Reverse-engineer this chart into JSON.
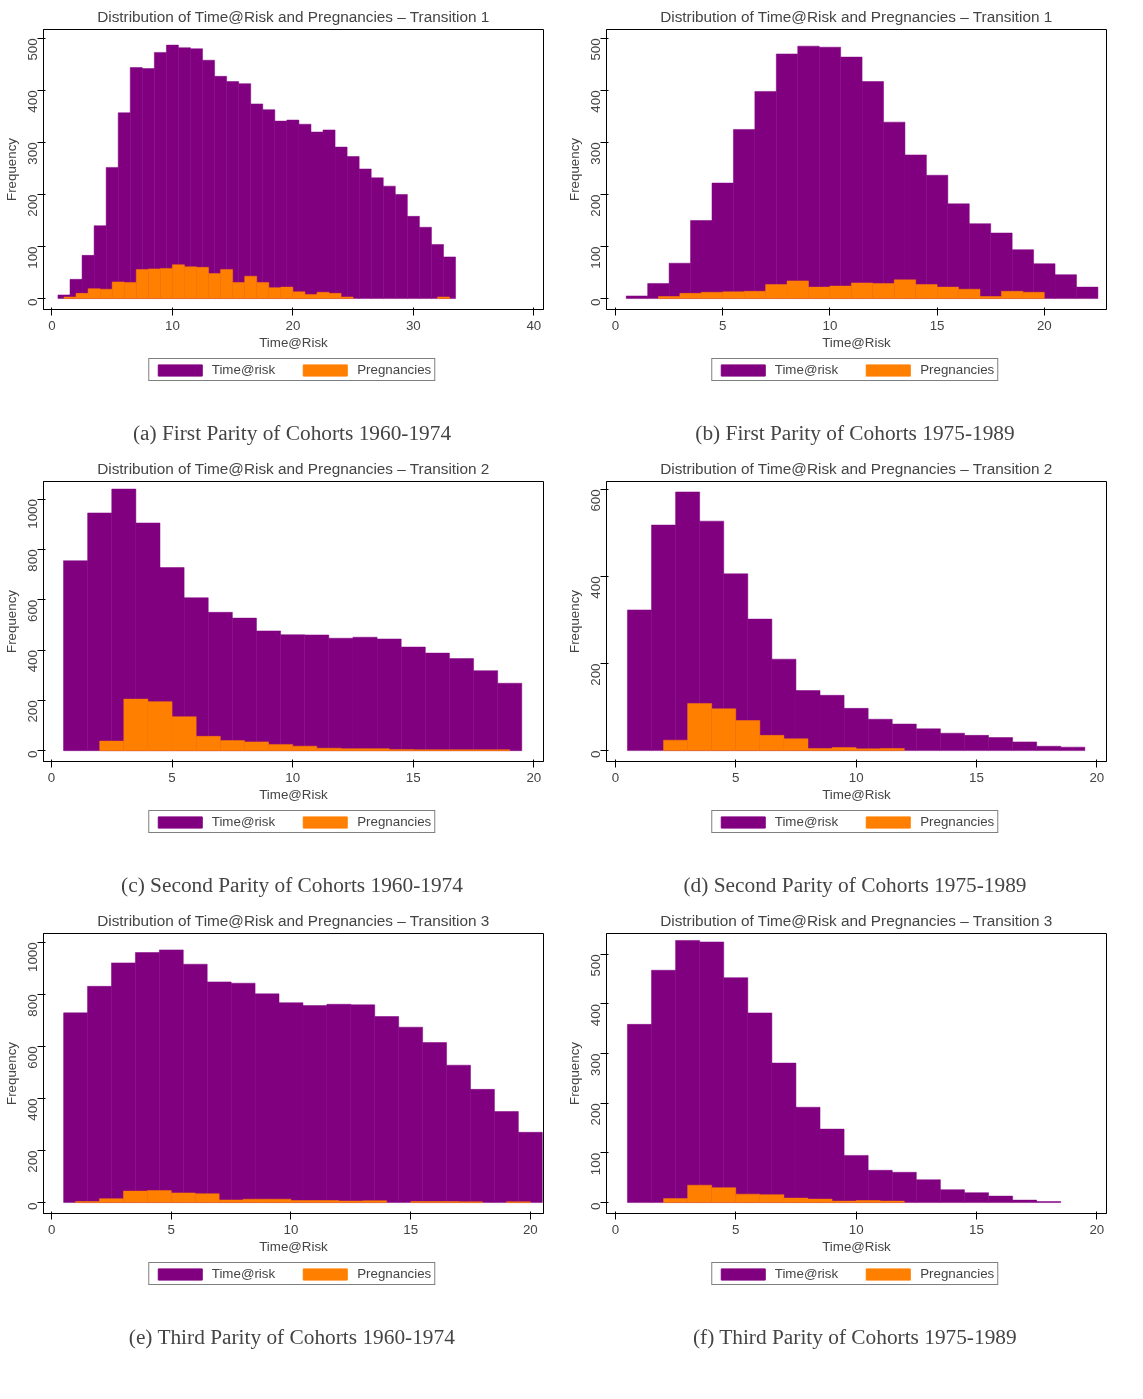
{
  "chart_data": [
    {
      "type": "bar",
      "title": "Distribution of Time@Risk and Pregnancies – Transition 1",
      "xlabel": "Time@Risk",
      "ylabel": "Frequency",
      "xlim": [
        -0.7,
        40.8
      ],
      "ylim": [
        -21,
        517
      ],
      "xticks": [
        0,
        10,
        20,
        30,
        40
      ],
      "yticks": [
        0,
        100,
        200,
        300,
        400,
        500
      ],
      "grid": false,
      "legend": "bottom",
      "annotations": [
        "(a) First Parity of Cohorts 1960-1974"
      ],
      "series": [
        {
          "name": "Time@risk",
          "color": "#800080",
          "x": [
            1,
            2,
            3,
            4,
            5,
            6,
            7,
            8,
            9,
            10,
            11,
            12,
            13,
            14,
            15,
            16,
            17,
            18,
            19,
            20,
            21,
            22,
            23,
            24,
            25,
            26,
            27,
            28,
            29,
            30,
            31,
            32,
            33
          ],
          "values": [
            7,
            37,
            83,
            140,
            252,
            357,
            444,
            442,
            473,
            487,
            482,
            480,
            458,
            427,
            417,
            413,
            374,
            363,
            341,
            343,
            335,
            320,
            324,
            291,
            273,
            249,
            232,
            216,
            200,
            158,
            137,
            104,
            80
          ]
        },
        {
          "name": "Pregnancies",
          "color": "#ff7f00",
          "x": [
            1.5,
            2.5,
            3.5,
            4.5,
            5.5,
            6.5,
            7.5,
            8.5,
            9.5,
            10.5,
            11.5,
            12.5,
            13.5,
            14.5,
            15.5,
            16.5,
            17.5,
            18.5,
            19.5,
            20.5,
            21.5,
            22.5,
            23.5,
            24.5,
            32.5
          ],
          "values": [
            3,
            10,
            19,
            18,
            32,
            31,
            56,
            57,
            58,
            65,
            61,
            60,
            48,
            56,
            31,
            43,
            31,
            21,
            22,
            13,
            8,
            12,
            10,
            3,
            3
          ]
        }
      ]
    },
    {
      "type": "bar",
      "title": "Distribution of Time@Risk and Pregnancies – Transition 1",
      "xlabel": "Time@Risk",
      "ylabel": "Frequency",
      "xlim": [
        -0.42,
        22.9
      ],
      "ylim": [
        -21,
        517
      ],
      "xticks": [
        0,
        5,
        10,
        15,
        20
      ],
      "yticks": [
        0,
        100,
        200,
        300,
        400,
        500
      ],
      "grid": false,
      "legend": "bottom",
      "annotations": [
        "(b) First Parity of Cohorts 1975-1989"
      ],
      "series": [
        {
          "name": "Time@risk",
          "color": "#800080",
          "x": [
            1,
            2,
            3,
            4,
            5,
            6,
            7,
            8,
            9,
            10,
            11,
            12,
            13,
            14,
            15,
            16,
            17,
            18,
            19,
            20,
            21,
            22
          ],
          "values": [
            5,
            29,
            68,
            150,
            222,
            325,
            398,
            470,
            485,
            483,
            464,
            417,
            339,
            276,
            237,
            182,
            144,
            126,
            94,
            67,
            46,
            22
          ]
        },
        {
          "name": "Pregnancies",
          "color": "#ff7f00",
          "x": [
            2.5,
            3.5,
            4.5,
            5.5,
            6.5,
            7.5,
            8.5,
            9.5,
            10.5,
            11.5,
            12.5,
            13.5,
            14.5,
            15.5,
            16.5,
            17.5,
            18.5,
            19.5
          ],
          "values": [
            4,
            10,
            12,
            13,
            14,
            27,
            34,
            22,
            24,
            30,
            29,
            36,
            27,
            22,
            18,
            4,
            14,
            12
          ]
        }
      ]
    },
    {
      "type": "bar",
      "title": "Distribution of Time@Risk and Pregnancies – Transition 2",
      "xlabel": "Time@Risk",
      "ylabel": "Frequency",
      "xlim": [
        -0.33,
        20.4
      ],
      "ylim": [
        -43,
        1070
      ],
      "xticks": [
        0,
        5,
        10,
        15,
        20
      ],
      "yticks": [
        0,
        200,
        400,
        600,
        800,
        1000
      ],
      "grid": false,
      "legend": "bottom",
      "annotations": [
        "(c) Second Parity of Cohorts 1960-1974"
      ],
      "series": [
        {
          "name": "Time@risk",
          "color": "#800080",
          "x": [
            1,
            2,
            3,
            4,
            5,
            6,
            7,
            8,
            9,
            10,
            11,
            12,
            13,
            14,
            15,
            16,
            17,
            18,
            19
          ],
          "values": [
            755,
            945,
            1040,
            905,
            728,
            608,
            550,
            527,
            476,
            461,
            460,
            447,
            451,
            444,
            412,
            388,
            366,
            318,
            268
          ]
        },
        {
          "name": "Pregnancies",
          "color": "#ff7f00",
          "x": [
            2.5,
            3.5,
            4.5,
            5.5,
            6.5,
            7.5,
            8.5,
            9.5,
            10.5,
            11.5,
            12.5,
            13.5,
            14.5,
            15.5,
            16.5,
            17.5,
            18.5
          ],
          "values": [
            38,
            205,
            195,
            135,
            57,
            40,
            35,
            25,
            18,
            10,
            8,
            8,
            5,
            4,
            4,
            4,
            4
          ]
        }
      ]
    },
    {
      "type": "bar",
      "title": "Distribution of Time@Risk and Pregnancies – Transition 2",
      "xlabel": "Time@Risk",
      "ylabel": "Frequency",
      "xlim": [
        -0.37,
        20.4
      ],
      "ylim": [
        -25,
        618
      ],
      "xticks": [
        0,
        5,
        10,
        15,
        20
      ],
      "yticks": [
        0,
        200,
        400,
        600
      ],
      "grid": false,
      "legend": "bottom",
      "annotations": [
        "(d) Second Parity of Cohorts 1975-1989"
      ],
      "series": [
        {
          "name": "Time@risk",
          "color": "#800080",
          "x": [
            1,
            2,
            3,
            4,
            5,
            6,
            7,
            8,
            9,
            10,
            11,
            12,
            13,
            14,
            15,
            16,
            17,
            18,
            19
          ],
          "values": [
            323,
            518,
            594,
            527,
            406,
            302,
            210,
            138,
            127,
            97,
            72,
            61,
            50,
            40,
            35,
            30,
            20,
            10,
            8
          ]
        },
        {
          "name": "Pregnancies",
          "color": "#ff7f00",
          "x": [
            2.5,
            3.5,
            4.5,
            5.5,
            6.5,
            7.5,
            8.5,
            9.5,
            10.5,
            11.5
          ],
          "values": [
            24,
            108,
            96,
            69,
            35,
            27,
            5,
            7,
            4,
            5
          ]
        }
      ]
    },
    {
      "type": "bar",
      "title": "Distribution of Time@Risk and Pregnancies – Transition 3",
      "xlabel": "Time@Risk",
      "ylabel": "Frequency",
      "xlim": [
        -0.34,
        20.55
      ],
      "ylim": [
        -42,
        1034
      ],
      "xticks": [
        0,
        5,
        10,
        15,
        20
      ],
      "yticks": [
        0,
        200,
        400,
        600,
        800,
        1000
      ],
      "grid": false,
      "legend": "bottom",
      "annotations": [
        "(e) Third Parity of Cohorts 1960-1974"
      ],
      "series": [
        {
          "name": "Time@risk",
          "color": "#800080",
          "x": [
            1,
            2,
            3,
            4,
            5,
            6,
            7,
            8,
            9,
            10,
            11,
            12,
            13,
            14,
            15,
            16,
            17,
            18,
            19,
            20
          ],
          "values": [
            729,
            831,
            921,
            961,
            971,
            916,
            848,
            843,
            802,
            768,
            757,
            762,
            760,
            715,
            674,
            615,
            528,
            435,
            350,
            270
          ]
        },
        {
          "name": "Pregnancies",
          "color": "#ff7f00",
          "x": [
            1.5,
            2.5,
            3.5,
            4.5,
            5.5,
            6.5,
            7.5,
            8.5,
            9.5,
            10.5,
            11.5,
            12.5,
            13.5,
            15.5,
            16.5,
            17.5,
            19.5
          ],
          "values": [
            4,
            15,
            44,
            46,
            37,
            34,
            10,
            13,
            13,
            8,
            8,
            6,
            7,
            4,
            4,
            3,
            3
          ]
        }
      ]
    },
    {
      "type": "bar",
      "title": "Distribution of Time@Risk and Pregnancies – Transition 3",
      "xlabel": "Time@Risk",
      "ylabel": "Frequency",
      "xlim": [
        -0.37,
        20.4
      ],
      "ylim": [
        -22,
        542
      ],
      "xticks": [
        0,
        5,
        10,
        15,
        20
      ],
      "yticks": [
        0,
        100,
        200,
        300,
        400,
        500
      ],
      "grid": false,
      "legend": "bottom",
      "annotations": [
        "(f) Third Parity of Cohorts 1975-1989"
      ],
      "series": [
        {
          "name": "Time@risk",
          "color": "#800080",
          "x": [
            1,
            2,
            3,
            4,
            5,
            6,
            7,
            8,
            9,
            10,
            11,
            12,
            13,
            14,
            15,
            16,
            17,
            18
          ],
          "values": [
            359,
            468,
            528,
            525,
            453,
            382,
            281,
            192,
            148,
            95,
            65,
            61,
            46,
            26,
            20,
            13,
            5,
            2
          ]
        },
        {
          "name": "Pregnancies",
          "color": "#ff7f00",
          "x": [
            2.5,
            3.5,
            4.5,
            5.5,
            6.5,
            7.5,
            8.5,
            9.5,
            10.5,
            11.5
          ],
          "values": [
            8,
            35,
            30,
            17,
            16,
            9,
            7,
            3,
            4,
            3
          ]
        }
      ]
    }
  ]
}
